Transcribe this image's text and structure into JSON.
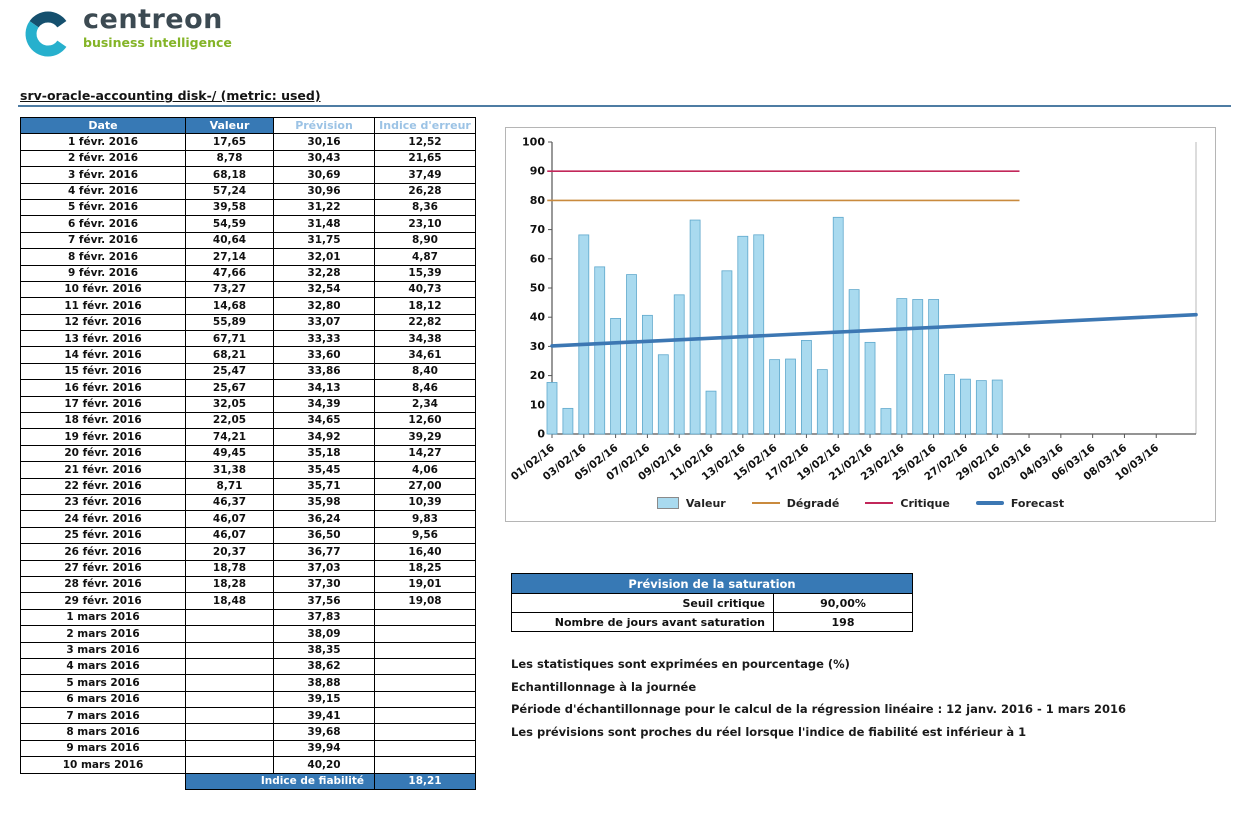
{
  "logo": {
    "brand": "centreon",
    "tagline": "business intelligence"
  },
  "page_title": "srv-oracle-accounting  disk-/  (metric: used)",
  "table": {
    "headers": [
      "Date",
      "Valeur",
      "Prévision",
      "Indice d'erreur"
    ],
    "rows": [
      [
        "1 févr. 2016",
        "17,65",
        "30,16",
        "12,52"
      ],
      [
        "2 févr. 2016",
        "8,78",
        "30,43",
        "21,65"
      ],
      [
        "3 févr. 2016",
        "68,18",
        "30,69",
        "37,49"
      ],
      [
        "4 févr. 2016",
        "57,24",
        "30,96",
        "26,28"
      ],
      [
        "5 févr. 2016",
        "39,58",
        "31,22",
        "8,36"
      ],
      [
        "6 févr. 2016",
        "54,59",
        "31,48",
        "23,10"
      ],
      [
        "7 févr. 2016",
        "40,64",
        "31,75",
        "8,90"
      ],
      [
        "8 févr. 2016",
        "27,14",
        "32,01",
        "4,87"
      ],
      [
        "9 févr. 2016",
        "47,66",
        "32,28",
        "15,39"
      ],
      [
        "10 févr. 2016",
        "73,27",
        "32,54",
        "40,73"
      ],
      [
        "11 févr. 2016",
        "14,68",
        "32,80",
        "18,12"
      ],
      [
        "12 févr. 2016",
        "55,89",
        "33,07",
        "22,82"
      ],
      [
        "13 févr. 2016",
        "67,71",
        "33,33",
        "34,38"
      ],
      [
        "14 févr. 2016",
        "68,21",
        "33,60",
        "34,61"
      ],
      [
        "15 févr. 2016",
        "25,47",
        "33,86",
        "8,40"
      ],
      [
        "16 févr. 2016",
        "25,67",
        "34,13",
        "8,46"
      ],
      [
        "17 févr. 2016",
        "32,05",
        "34,39",
        "2,34"
      ],
      [
        "18 févr. 2016",
        "22,05",
        "34,65",
        "12,60"
      ],
      [
        "19 févr. 2016",
        "74,21",
        "34,92",
        "39,29"
      ],
      [
        "20 févr. 2016",
        "49,45",
        "35,18",
        "14,27"
      ],
      [
        "21 févr. 2016",
        "31,38",
        "35,45",
        "4,06"
      ],
      [
        "22 févr. 2016",
        "8,71",
        "35,71",
        "27,00"
      ],
      [
        "23 févr. 2016",
        "46,37",
        "35,98",
        "10,39"
      ],
      [
        "24 févr. 2016",
        "46,07",
        "36,24",
        "9,83"
      ],
      [
        "25 févr. 2016",
        "46,07",
        "36,50",
        "9,56"
      ],
      [
        "26 févr. 2016",
        "20,37",
        "36,77",
        "16,40"
      ],
      [
        "27 févr. 2016",
        "18,78",
        "37,03",
        "18,25"
      ],
      [
        "28 févr. 2016",
        "18,28",
        "37,30",
        "19,01"
      ],
      [
        "29 févr. 2016",
        "18,48",
        "37,56",
        "19,08"
      ],
      [
        "1 mars 2016",
        "",
        "37,83",
        ""
      ],
      [
        "2 mars 2016",
        "",
        "38,09",
        ""
      ],
      [
        "3 mars 2016",
        "",
        "38,35",
        ""
      ],
      [
        "4 mars 2016",
        "",
        "38,62",
        ""
      ],
      [
        "5 mars 2016",
        "",
        "38,88",
        ""
      ],
      [
        "6 mars 2016",
        "",
        "39,15",
        ""
      ],
      [
        "7 mars 2016",
        "",
        "39,41",
        ""
      ],
      [
        "8 mars 2016",
        "",
        "39,68",
        ""
      ],
      [
        "9 mars 2016",
        "",
        "39,94",
        ""
      ],
      [
        "10 mars 2016",
        "",
        "40,20",
        ""
      ]
    ],
    "footer_label": "Indice de fiabilité",
    "footer_value": "18,21"
  },
  "chart_data": {
    "type": "bar",
    "title": "",
    "xlabel": "",
    "ylabel": "",
    "ylim": [
      0,
      100
    ],
    "y_ticks": [
      0,
      10,
      20,
      30,
      40,
      50,
      60,
      70,
      80,
      90,
      100
    ],
    "x_span": 40.5,
    "x_tick_days": [
      0,
      2,
      4,
      6,
      8,
      10,
      12,
      14,
      16,
      18,
      20,
      22,
      24,
      26,
      28,
      30,
      32,
      34,
      36,
      38
    ],
    "x_tick_labels": [
      "01/02/16",
      "03/02/16",
      "05/02/16",
      "07/02/16",
      "09/02/16",
      "11/02/16",
      "13/02/16",
      "15/02/16",
      "17/02/16",
      "19/02/16",
      "21/02/16",
      "23/02/16",
      "25/02/16",
      "27/02/16",
      "29/02/16",
      "02/03/16",
      "04/03/16",
      "06/03/16",
      "08/03/16",
      "10/03/16"
    ],
    "bars": {
      "name": "Valeur",
      "color": "#A9DAEF",
      "border": "#5FA8CC",
      "values": [
        17.65,
        8.78,
        68.18,
        57.24,
        39.58,
        54.59,
        40.64,
        27.14,
        47.66,
        73.27,
        14.68,
        55.89,
        67.71,
        68.21,
        25.47,
        25.67,
        32.05,
        22.05,
        74.21,
        49.45,
        31.38,
        8.71,
        46.37,
        46.07,
        46.07,
        20.37,
        18.78,
        18.28,
        18.48
      ]
    },
    "thresholds": [
      {
        "name": "Dégradé",
        "value": 80,
        "color": "#C98A3D",
        "from_day": -0.3,
        "to_day": 29.4
      },
      {
        "name": "Critique",
        "value": 90,
        "color": "#C2275A",
        "from_day": -0.3,
        "to_day": 29.4
      }
    ],
    "forecast": {
      "name": "Forecast",
      "color": "#3C77B3",
      "points": [
        [
          0,
          30.16
        ],
        [
          40.5,
          40.86
        ]
      ]
    },
    "legend_position": "bottom",
    "legend": [
      {
        "label": "Valeur",
        "swatch": "bar",
        "color": "#A9DAEF"
      },
      {
        "label": "Dégradé",
        "swatch": "line",
        "color": "#C98A3D"
      },
      {
        "label": "Critique",
        "swatch": "line",
        "color": "#C2275A"
      },
      {
        "label": "Forecast",
        "swatch": "thick-line",
        "color": "#3C77B3"
      }
    ]
  },
  "saturation": {
    "title": "Prévision de la saturation",
    "rows": [
      [
        "Seuil critique",
        "90,00%"
      ],
      [
        "Nombre de jours avant saturation",
        "198"
      ]
    ]
  },
  "notes": [
    "Les statistiques sont exprimées en pourcentage (%)",
    "Echantillonnage à la journée",
    "Période d'échantillonnage pour le calcul de la régression linéaire : 12 janv. 2016 - 1 mars 2016",
    "Les prévisions sont proches du réel lorsque l'indice de fiabilité est inférieur à 1"
  ],
  "colors": {
    "table_header_blue": "#3779b5",
    "table_header_light_text": "#9cc3e5",
    "title_rule": "#4e7ca3",
    "logo_navy": "#15506e",
    "logo_cyan": "#27b0cd",
    "logo_green": "#84b427"
  }
}
